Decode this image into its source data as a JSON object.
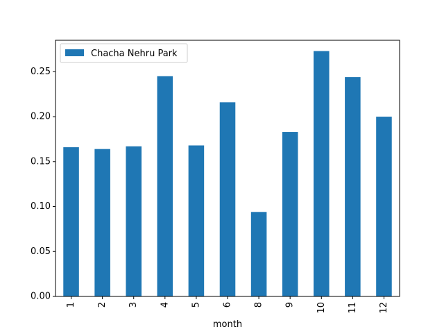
{
  "chart_data": {
    "type": "bar",
    "title": "",
    "xlabel": "month",
    "ylabel": "",
    "categories": [
      "1",
      "2",
      "3",
      "4",
      "5",
      "6",
      "8",
      "9",
      "10",
      "11",
      "12"
    ],
    "series": [
      {
        "name": "Chacha Nehru Park",
        "color": "#1f77b4",
        "values": [
          0.166,
          0.164,
          0.167,
          0.245,
          0.168,
          0.216,
          0.094,
          0.183,
          0.273,
          0.244,
          0.2
        ]
      }
    ],
    "ylim": [
      0,
      0.285
    ],
    "yticks": [
      0.0,
      0.05,
      0.1,
      0.15,
      0.2,
      0.25
    ],
    "ytick_labels": [
      "0.00",
      "0.05",
      "0.10",
      "0.15",
      "0.20",
      "0.25"
    ],
    "legend_position": "top-left",
    "grid": false
  }
}
